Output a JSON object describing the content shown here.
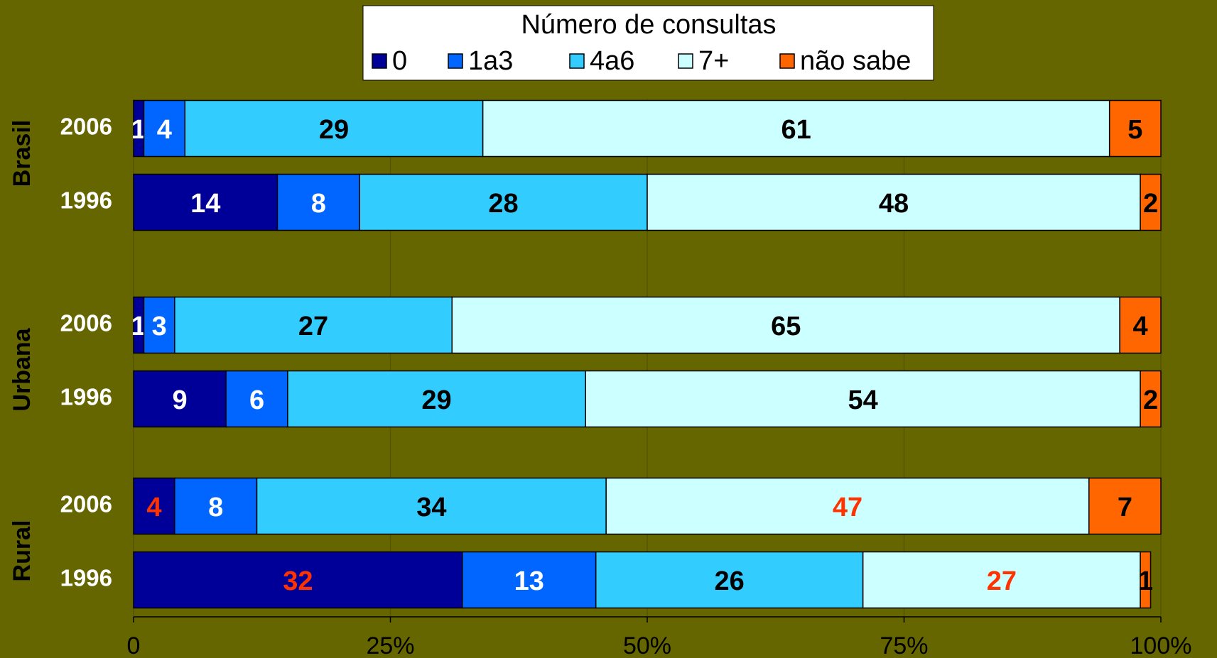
{
  "chart_data": {
    "type": "stacked-bar-horizontal",
    "legend_title": "Número de consultas",
    "groups": [
      {
        "name": "Brasil",
        "categories": [
          "2006",
          "1996"
        ]
      },
      {
        "name": "Urbana",
        "categories": [
          "2006",
          "1996"
        ]
      },
      {
        "name": "Rural",
        "categories": [
          "2006",
          "1996"
        ]
      }
    ],
    "series": [
      {
        "name": "0",
        "color": "#000099",
        "values": [
          1,
          14,
          1,
          9,
          4,
          32
        ],
        "label_colors": [
          "#ffffff",
          "#ffffff",
          "#ffffff",
          "#ffffff",
          "#ff3300",
          "#ff3300"
        ]
      },
      {
        "name": "1a3",
        "color": "#0066ff",
        "values": [
          4,
          8,
          3,
          6,
          8,
          13
        ],
        "label_colors": [
          "#ffffff",
          "#ffffff",
          "#ffffff",
          "#ffffff",
          "#ffffff",
          "#ffffff"
        ]
      },
      {
        "name": "4a6",
        "color": "#33ccff",
        "values": [
          29,
          28,
          27,
          29,
          34,
          26
        ],
        "label_colors": [
          "#000000",
          "#000000",
          "#000000",
          "#000000",
          "#000000",
          "#000000"
        ]
      },
      {
        "name": "7+",
        "color": "#ccffff",
        "values": [
          61,
          48,
          65,
          54,
          47,
          27
        ],
        "label_colors": [
          "#000000",
          "#000000",
          "#000000",
          "#000000",
          "#ff3300",
          "#ff3300"
        ]
      },
      {
        "name": "não sabe",
        "color": "#ff6600",
        "values": [
          5,
          2,
          4,
          2,
          7,
          1
        ],
        "label_colors": [
          "#000000",
          "#000000",
          "#000000",
          "#000000",
          "#000000",
          "#000000"
        ]
      }
    ],
    "xlim": [
      0,
      100
    ],
    "xticks": [
      0,
      {
        "value": 25,
        "label": "25%"
      },
      {
        "value": 50,
        "label": "50%"
      },
      {
        "value": 75,
        "label": "75%"
      },
      {
        "value": 100,
        "label": "100%"
      }
    ],
    "grid": true
  }
}
